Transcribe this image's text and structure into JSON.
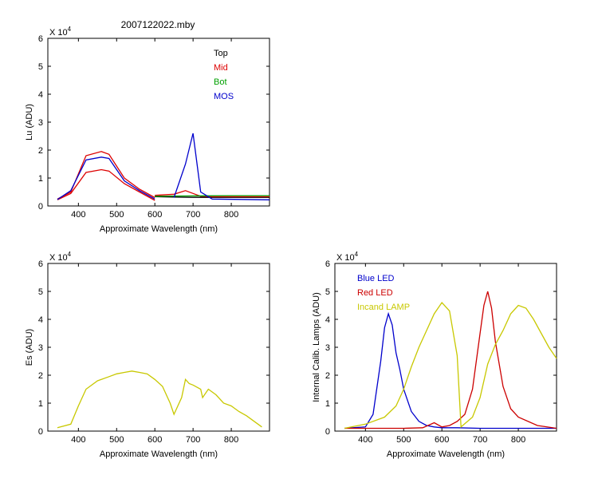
{
  "figure_title": "2007122022.mby",
  "chart_data": [
    {
      "type": "line",
      "ylabel": "Lu (ADU)",
      "xlabel": "Approximate Wavelength (nm)",
      "scale_label": "X 10",
      "scale_exp": "4",
      "xlim": [
        320,
        900
      ],
      "ylim": [
        0,
        6
      ],
      "xticks": [
        400,
        500,
        600,
        700,
        800
      ],
      "yticks": [
        0,
        1,
        2,
        3,
        4,
        5,
        6
      ],
      "legend_position": "top-right",
      "legend": [
        {
          "name": "Top",
          "color": "#000000"
        },
        {
          "name": "Mid",
          "color": "#dd0000"
        },
        {
          "name": "Bot",
          "color": "#00a000"
        },
        {
          "name": "MOS",
          "color": "#0000cc"
        }
      ],
      "series": [
        {
          "name": "Top",
          "color": "#000000",
          "x": [
            600,
            650,
            700,
            750,
            800,
            900
          ],
          "y": [
            0.33,
            0.32,
            0.31,
            0.31,
            0.31,
            0.31
          ]
        },
        {
          "name": "Mid",
          "color": "#dd0000",
          "x": [
            600,
            650,
            680,
            700,
            720,
            750,
            900
          ],
          "y": [
            0.38,
            0.42,
            0.55,
            0.45,
            0.35,
            0.33,
            0.33
          ]
        },
        {
          "name": "Bot",
          "color": "#00a000",
          "x": [
            600,
            700,
            800,
            900
          ],
          "y": [
            0.35,
            0.36,
            0.37,
            0.37
          ]
        },
        {
          "name": "MOS",
          "color": "#0000cc",
          "x": [
            650,
            680,
            700,
            720,
            750,
            900
          ],
          "y": [
            0.3,
            1.5,
            2.6,
            0.5,
            0.25,
            0.22
          ]
        },
        {
          "name": "Mid",
          "color": "#dd0000",
          "x": [
            345,
            380,
            420,
            460,
            480,
            520,
            560,
            600
          ],
          "y": [
            0.25,
            0.5,
            1.8,
            1.95,
            1.85,
            1.0,
            0.6,
            0.3
          ]
        },
        {
          "name": "Mid",
          "color": "#dd0000",
          "x": [
            345,
            380,
            420,
            460,
            480,
            520,
            560,
            600
          ],
          "y": [
            0.22,
            0.45,
            1.2,
            1.3,
            1.25,
            0.8,
            0.5,
            0.2
          ]
        },
        {
          "name": "MOS",
          "color": "#0000cc",
          "x": [
            345,
            380,
            420,
            460,
            480,
            520,
            560,
            600
          ],
          "y": [
            0.23,
            0.55,
            1.65,
            1.75,
            1.7,
            0.9,
            0.55,
            0.25
          ]
        }
      ]
    },
    {
      "type": "line",
      "ylabel": "Es  (ADU)",
      "xlabel": "Approximate Wavelength (nm)",
      "scale_label": "X 10",
      "scale_exp": "4",
      "xlim": [
        320,
        900
      ],
      "ylim": [
        0,
        6
      ],
      "xticks": [
        400,
        500,
        600,
        700,
        800
      ],
      "yticks": [
        0,
        1,
        2,
        3,
        4,
        5,
        6
      ],
      "series": [
        {
          "color": "#c8c800",
          "x": [
            345,
            380,
            400,
            420,
            450,
            480,
            500,
            520,
            540,
            560,
            580,
            600,
            620,
            640,
            650,
            670,
            680,
            690,
            700,
            720,
            725,
            740,
            760,
            780,
            800,
            820,
            840,
            860,
            880
          ],
          "y": [
            0.12,
            0.25,
            0.9,
            1.5,
            1.8,
            1.95,
            2.05,
            2.1,
            2.15,
            2.1,
            2.05,
            1.85,
            1.6,
            1.0,
            0.6,
            1.2,
            1.85,
            1.7,
            1.65,
            1.5,
            1.2,
            1.5,
            1.3,
            1.0,
            0.9,
            0.7,
            0.55,
            0.35,
            0.15
          ]
        }
      ]
    },
    {
      "type": "line",
      "ylabel": "Internal Calib. Lamps (ADU)",
      "xlabel": "Approximate Wavelength (nm)",
      "scale_label": "X 10",
      "scale_exp": "4",
      "xlim": [
        320,
        900
      ],
      "ylim": [
        0,
        6
      ],
      "xticks": [
        400,
        500,
        600,
        700,
        800
      ],
      "yticks": [
        0,
        1,
        2,
        3,
        4,
        5,
        6
      ],
      "legend_position": "top-left",
      "legend": [
        {
          "name": "Blue LED",
          "color": "#0000cc"
        },
        {
          "name": "Red LED",
          "color": "#cc0000"
        },
        {
          "name": "Incand LAMP",
          "color": "#c8c800"
        }
      ],
      "series": [
        {
          "name": "Blue LED",
          "color": "#0000cc",
          "x": [
            345,
            400,
            420,
            440,
            450,
            460,
            470,
            480,
            490,
            500,
            520,
            540,
            560,
            580,
            600,
            640,
            700,
            800,
            900
          ],
          "y": [
            0.1,
            0.15,
            0.6,
            2.5,
            3.7,
            4.2,
            3.8,
            2.8,
            2.2,
            1.5,
            0.7,
            0.35,
            0.2,
            0.15,
            0.12,
            0.12,
            0.1,
            0.1,
            0.1
          ]
        },
        {
          "name": "Red LED",
          "color": "#cc0000",
          "x": [
            345,
            500,
            550,
            580,
            600,
            620,
            640,
            660,
            680,
            700,
            710,
            720,
            730,
            740,
            760,
            780,
            800,
            850,
            900
          ],
          "y": [
            0.1,
            0.1,
            0.12,
            0.3,
            0.15,
            0.2,
            0.35,
            0.6,
            1.5,
            3.5,
            4.5,
            5.0,
            4.4,
            3.2,
            1.6,
            0.8,
            0.5,
            0.2,
            0.1
          ]
        },
        {
          "name": "Incand LAMP",
          "color": "#c8c800",
          "x": [
            345,
            400,
            450,
            480,
            500,
            520,
            540,
            560,
            580,
            600,
            620,
            640,
            650,
            680,
            700,
            720,
            740,
            760,
            780,
            800,
            820,
            840,
            860,
            880,
            900
          ],
          "y": [
            0.1,
            0.25,
            0.5,
            0.9,
            1.5,
            2.3,
            3.0,
            3.6,
            4.2,
            4.6,
            4.3,
            2.7,
            0.15,
            0.5,
            1.2,
            2.4,
            3.1,
            3.6,
            4.2,
            4.5,
            4.4,
            4.0,
            3.5,
            3.0,
            2.6
          ]
        }
      ]
    }
  ]
}
